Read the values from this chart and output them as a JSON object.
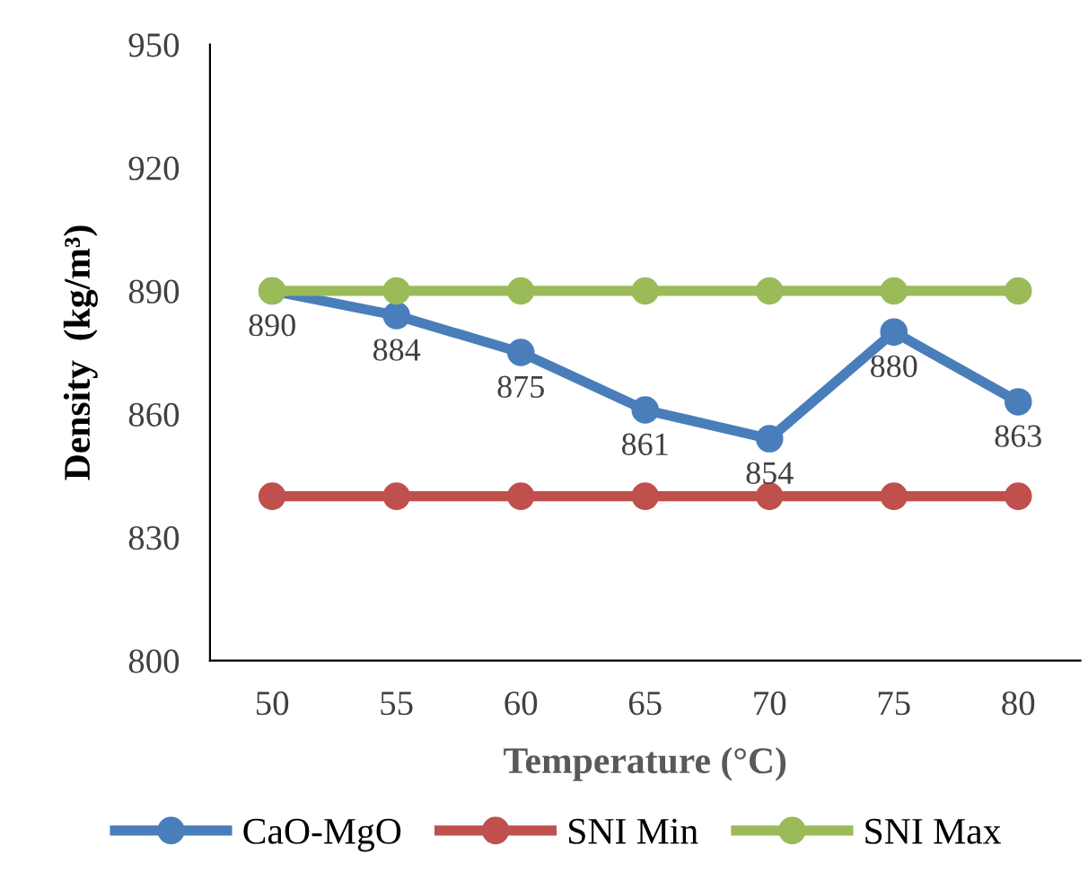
{
  "chart_data": {
    "type": "line",
    "xlabel": "Temperature (°C)",
    "ylabel": "Density  (kg/m³)",
    "categories": [
      "50",
      "55",
      "60",
      "65",
      "70",
      "75",
      "80"
    ],
    "series": [
      {
        "name": "CaO-MgO",
        "color": "#4a7ebb",
        "values": [
          890,
          884,
          875,
          861,
          854,
          880,
          863
        ],
        "value_labels": [
          "890",
          "884",
          "875",
          "861",
          "854",
          "880",
          "863"
        ]
      },
      {
        "name": "SNI Min",
        "color": "#c0504d",
        "values": [
          840,
          840,
          840,
          840,
          840,
          840,
          840
        ]
      },
      {
        "name": "SNI Max",
        "color": "#9bbb59",
        "values": [
          890,
          890,
          890,
          890,
          890,
          890,
          890
        ]
      }
    ],
    "ylim": [
      800,
      950
    ],
    "yticks": [
      800,
      830,
      860,
      890,
      920,
      950
    ],
    "grid": false,
    "legend": "bottom",
    "marker": "circle",
    "line_style": "solid"
  }
}
